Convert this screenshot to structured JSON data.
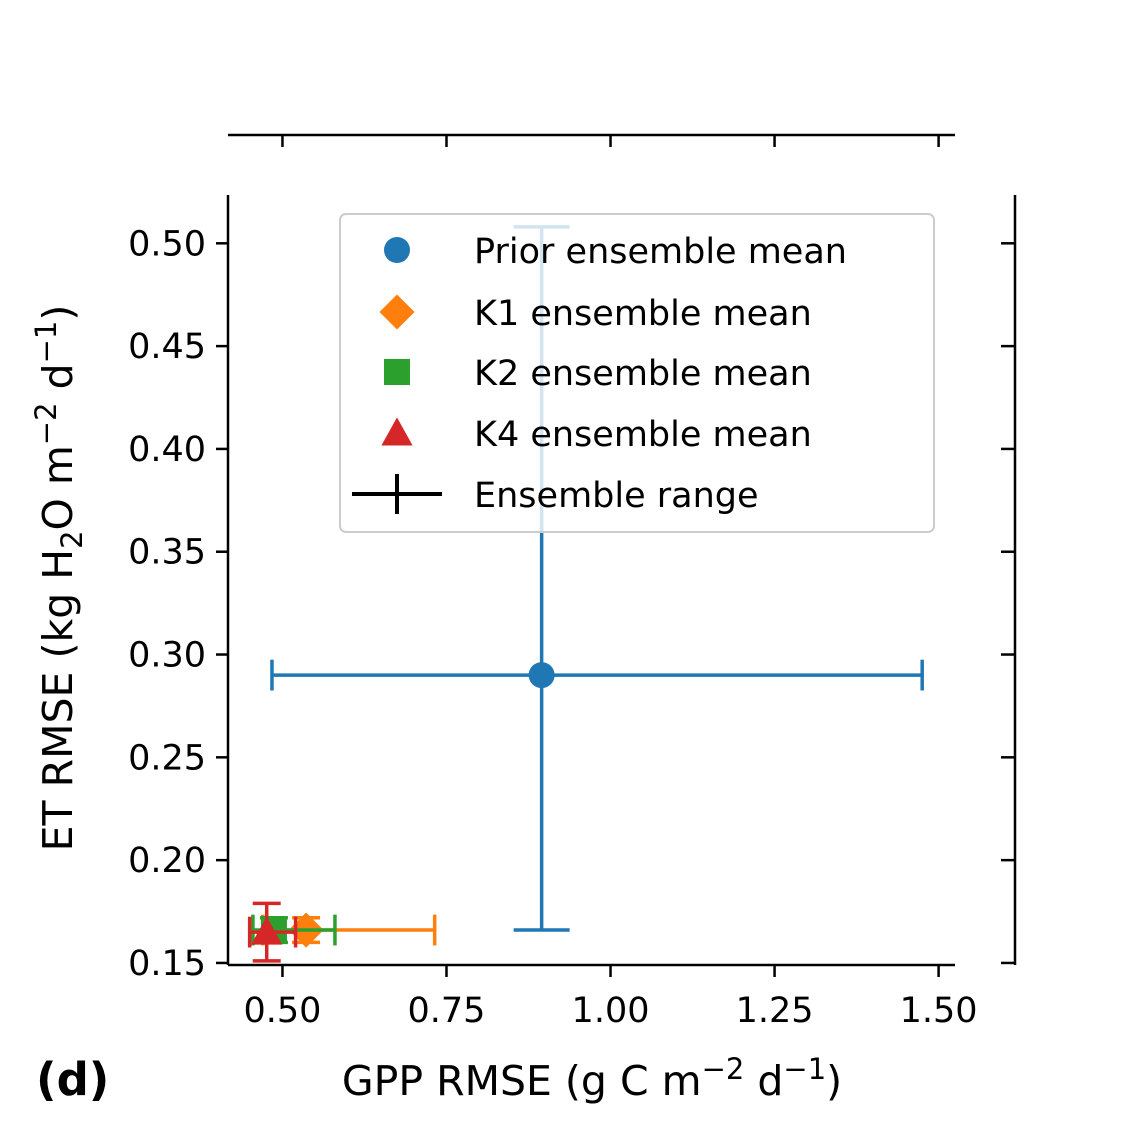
{
  "panel_label": "(d)",
  "chart_data": {
    "type": "scatter",
    "xlabel": "GPP RMSE (g C m^-2 d^-1)",
    "ylabel": "ET RMSE (kg H2O m^-2 d^-1)",
    "xlim": [
      0.417,
      1.525
    ],
    "ylim": [
      0.149,
      0.5235
    ],
    "x_ticks": [
      0.5,
      0.75,
      1.0,
      1.25,
      1.5
    ],
    "x_tick_labels": [
      "0.50",
      "0.75",
      "1.00",
      "1.25",
      "1.50"
    ],
    "y_ticks": [
      0.15,
      0.2,
      0.25,
      0.3,
      0.35,
      0.4,
      0.45,
      0.5
    ],
    "y_tick_labels": [
      "0.15",
      "0.20",
      "0.25",
      "0.30",
      "0.35",
      "0.40",
      "0.45",
      "0.50"
    ],
    "grid": false,
    "legend_position": "top-right",
    "series": [
      {
        "name": "Prior ensemble mean",
        "marker": "circle",
        "color": "#1f77b4",
        "x": 0.895,
        "y": 0.29,
        "x_range": [
          0.484,
          1.475
        ],
        "y_range": [
          0.166,
          0.508
        ]
      },
      {
        "name": "K1 ensemble mean",
        "marker": "diamond",
        "color": "#ff7f0e",
        "x": 0.536,
        "y": 0.166,
        "x_range": [
          0.47,
          0.732
        ],
        "y_range": [
          0.16,
          0.172
        ]
      },
      {
        "name": "K2 ensemble mean",
        "marker": "square",
        "color": "#2ca02c",
        "x": 0.487,
        "y": 0.166,
        "x_range": [
          0.455,
          0.58
        ],
        "y_range": [
          0.16,
          0.172
        ]
      },
      {
        "name": "K4 ensemble mean",
        "marker": "triangle",
        "color": "#d62728",
        "x": 0.476,
        "y": 0.165,
        "x_range": [
          0.45,
          0.52
        ],
        "y_range": [
          0.151,
          0.179
        ]
      }
    ],
    "legend_extra": {
      "label": "Ensemble range",
      "color": "#000000"
    }
  }
}
